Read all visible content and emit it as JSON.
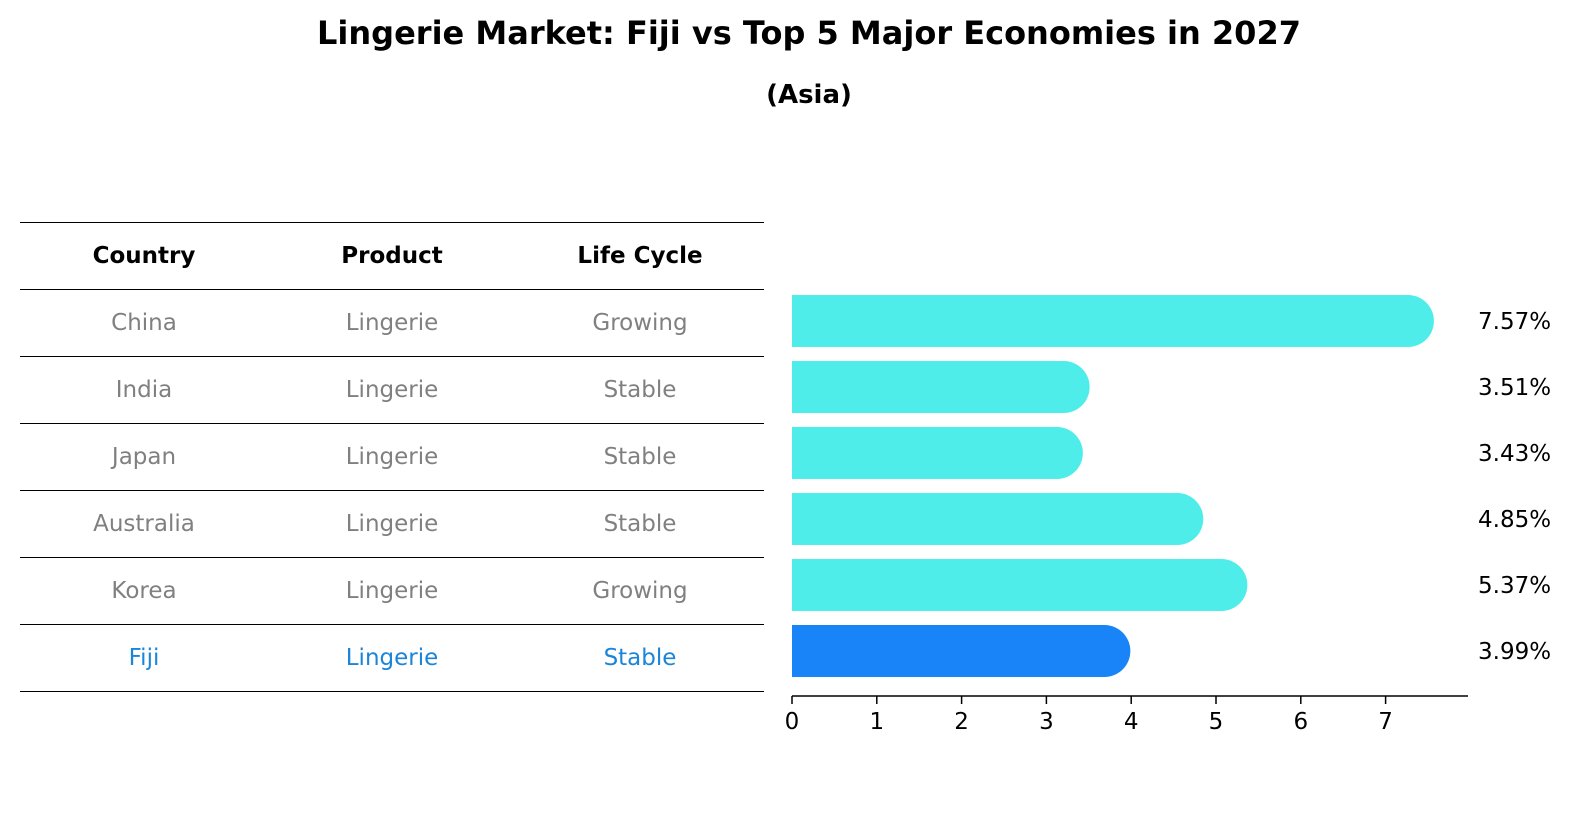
{
  "chart_data": {
    "type": "bar",
    "orientation": "horizontal",
    "title": "Lingerie Market: Fiji vs Top 5 Major Economies in 2027",
    "subtitle": "(Asia)",
    "categories": [
      "China",
      "India",
      "Japan",
      "Australia",
      "Korea",
      "Fiji"
    ],
    "values": [
      7.57,
      3.51,
      3.43,
      4.85,
      5.37,
      3.99
    ],
    "value_labels": [
      "7.57%",
      "3.51%",
      "3.43%",
      "4.85%",
      "5.37%",
      "3.99%"
    ],
    "x_ticks": [
      "0",
      "1",
      "2",
      "3",
      "4",
      "5",
      "6",
      "7"
    ],
    "xlim": [
      0,
      7.95
    ],
    "grid": false,
    "highlight": "Fiji",
    "colors": {
      "default": "#4eedea",
      "highlight": "#1884f7"
    }
  },
  "table": {
    "headers": [
      "Country",
      "Product",
      "Life Cycle"
    ],
    "rows": [
      [
        "China",
        "Lingerie",
        "Growing"
      ],
      [
        "India",
        "Lingerie",
        "Stable"
      ],
      [
        "Japan",
        "Lingerie",
        "Stable"
      ],
      [
        "Australia",
        "Lingerie",
        "Stable"
      ],
      [
        "Korea",
        "Lingerie",
        "Growing"
      ],
      [
        "Fiji",
        "Lingerie",
        "Stable"
      ]
    ],
    "highlight_row": 5,
    "text_color": "#808080",
    "highlight_color": "#1a85d9"
  }
}
